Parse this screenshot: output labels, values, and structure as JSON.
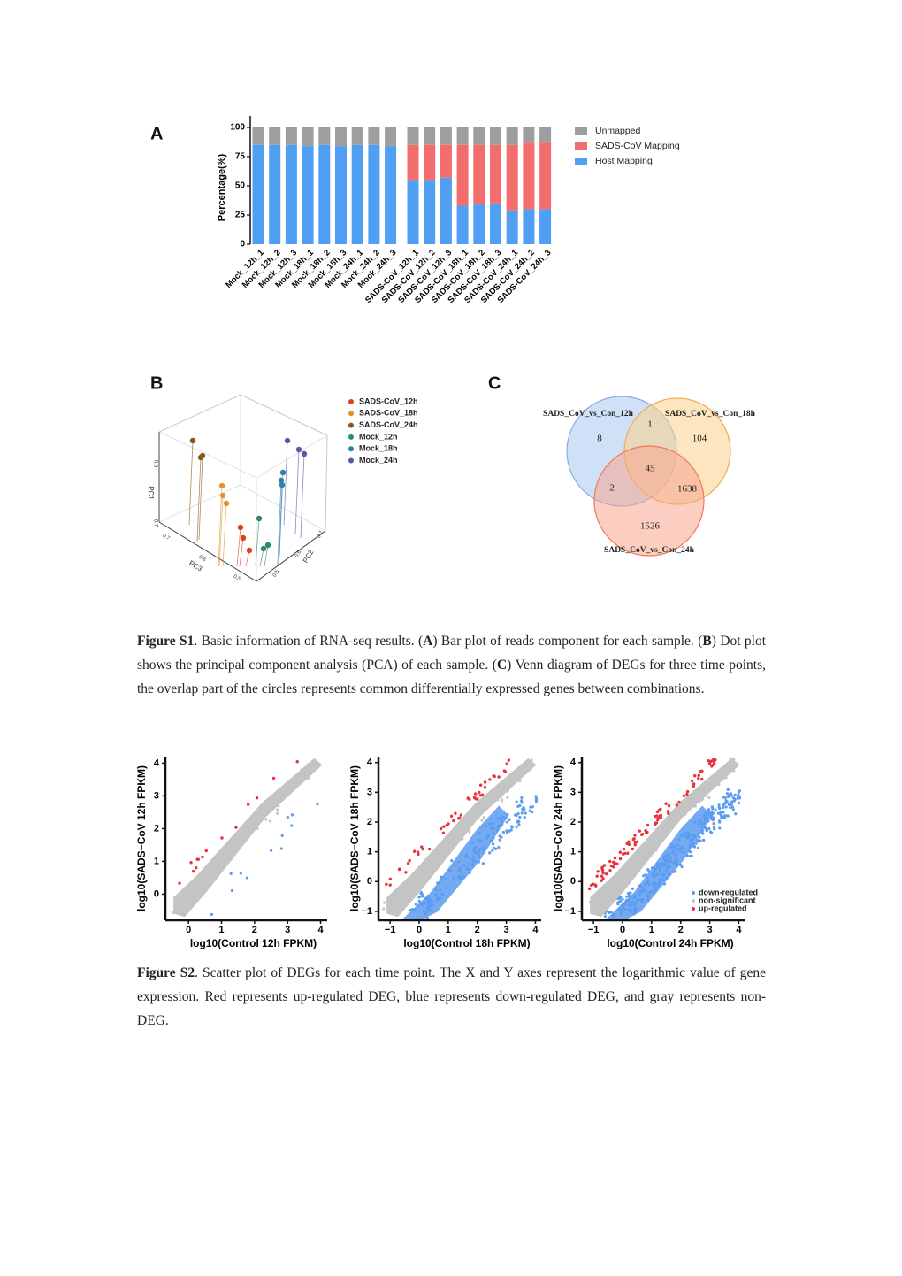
{
  "figure_s1": {
    "panels": [
      "A",
      "B",
      "C"
    ],
    "caption": [
      "Figure S1",
      ". Basic information of RNA-seq results. (",
      "A",
      ") Bar plot of reads component for each sample. (",
      "B",
      ") Dot plot shows the principal component analysis (PCA) of each sample. (",
      "C",
      ") Venn diagram of DEGs for three time points, the overlap part of the circles represents common differentially expressed genes between combinations."
    ]
  },
  "chart_data": [
    {
      "type": "bar",
      "stacked": true,
      "ylabel": "Percentage(%)",
      "categories": [
        "Mock_12h_1",
        "Mock_12h_2",
        "Mock_12h_3",
        "Mock_18h_1",
        "Mock_18h_2",
        "Mock_18h_3",
        "Mock_24h_1",
        "Mock_24h_2",
        "Mock_24h_3",
        "SADS-CoV_12h_1",
        "SADS-CoV_12h_2",
        "SADS-CoV_12h_3",
        "SADS-CoV_18h_1",
        "SADS-CoV_18h_2",
        "SADS-CoV_18h_3",
        "SADS-CoV_24h_1",
        "SADS-CoV_24h_2",
        "SADS-CoV_24h_3"
      ],
      "series": [
        {
          "name": "Host Mapping",
          "color": "#4f9ff2",
          "values": [
            85,
            85,
            85,
            84,
            85,
            84,
            85,
            85,
            84,
            55,
            55,
            57,
            33,
            34,
            35,
            29,
            30,
            30
          ]
        },
        {
          "name": "SADS-CoV Mapping",
          "color": "#f46d6d",
          "values": [
            0,
            0,
            0,
            0,
            0,
            0,
            0,
            0,
            0,
            30,
            30,
            28,
            52,
            51,
            50,
            56,
            57,
            57
          ]
        },
        {
          "name": "Unmapped",
          "color": "#9e9e9e",
          "values": [
            15,
            15,
            15,
            16,
            15,
            16,
            15,
            15,
            16,
            15,
            15,
            15,
            15,
            15,
            15,
            15,
            13,
            13
          ]
        }
      ],
      "ylim": [
        0,
        100
      ],
      "yticks": [
        0,
        25,
        50,
        75,
        100
      ]
    },
    {
      "type": "pca3d",
      "axis_labels": [
        "PC1",
        "PC2",
        "PC3"
      ],
      "pc1_ticks": [
        0.5,
        0.7
      ],
      "pc2_ticks": [
        0.7,
        0.6,
        0.5
      ],
      "pc3_ticks": [
        0.7,
        0.6,
        0.5
      ],
      "series": [
        {
          "name": "SADS-CoV_12h",
          "color": "#e0401f"
        },
        {
          "name": "SADS-CoV_18h",
          "color": "#e39230"
        },
        {
          "name": "SADS-CoV_24h",
          "color": "#8a5a1a"
        },
        {
          "name": "Mock_12h",
          "color": "#2e8b6a"
        },
        {
          "name": "Mock_18h",
          "color": "#2f7fa8"
        },
        {
          "name": "Mock_24h",
          "color": "#5a5aa8"
        }
      ]
    },
    {
      "type": "venn",
      "sets": [
        "SADS_CoV_vs_Con_12h",
        "SADS_CoV_vs_Con_18h",
        "SADS_CoV_vs_Con_24h"
      ],
      "colors": [
        "#a9c8f0",
        "#f9d08a",
        "#f7a58e"
      ],
      "regions": {
        "12h": 8,
        "18h": 104,
        "24h": 1526,
        "12h_18h": 1,
        "12h_24h": 2,
        "18h_24h": 1638,
        "12h_18h_24h": 45
      }
    },
    {
      "type": "scatter",
      "xlabel": "log10(Control 12h FPKM)",
      "ylabel": "log10(SADS−CoV 12h FPKM)",
      "xlim": [
        -0.7,
        4.2
      ],
      "ylim": [
        -0.8,
        4.2
      ],
      "xticks": [
        0,
        1,
        2,
        3,
        4
      ],
      "yticks": [
        0,
        1,
        2,
        3,
        4
      ]
    },
    {
      "type": "scatter",
      "xlabel": "log10(Control 18h FPKM)",
      "ylabel": "log10(SADS−CoV 18h FPKM)",
      "xlim": [
        -1.4,
        4.2
      ],
      "ylim": [
        -1.3,
        4.2
      ],
      "xticks": [
        {
          "value": -1,
          "label": "−1"
        },
        0,
        1,
        2,
        3,
        4
      ],
      "yticks": [
        {
          "value": -1,
          "label": "−1"
        },
        0,
        1,
        2,
        3,
        4
      ]
    },
    {
      "type": "scatter",
      "xlabel": "log10(Control 24h FPKM)",
      "ylabel": "log10(SADS−CoV 24h FPKM)",
      "xlim": [
        -1.4,
        4.2
      ],
      "ylim": [
        -1.3,
        4.2
      ],
      "xticks": [
        {
          "value": -1,
          "label": "−1"
        },
        0,
        1,
        2,
        3,
        4
      ],
      "yticks": [
        {
          "value": -1,
          "label": "−1"
        },
        0,
        1,
        2,
        3,
        4
      ],
      "series": [
        {
          "name": "down-regulated",
          "color": "#5b9bf0"
        },
        {
          "name": "non-significant",
          "color": "#c4c4c4"
        },
        {
          "name": "up-regulated",
          "color": "#e8333a"
        }
      ]
    }
  ],
  "figure_s2": {
    "caption": [
      "Figure S2",
      ". Scatter plot of DEGs for each time point. The X and Y axes represent the logarithmic value of gene expression. Red represents up-regulated DEG, blue represents down-regulated DEG, and gray represents non-DEG."
    ]
  }
}
